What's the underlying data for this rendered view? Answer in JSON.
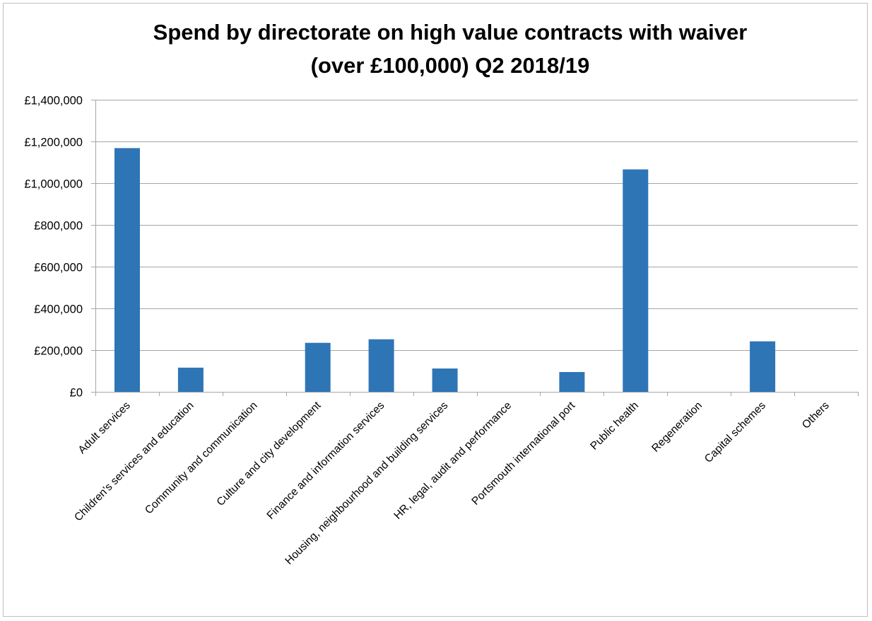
{
  "chart_data": {
    "type": "bar",
    "title_lines": [
      "Spend by directorate on high value contracts with waiver",
      "(over £100,000) Q2 2018/19"
    ],
    "xlabel": "",
    "ylabel": "",
    "categories": [
      "Adult services",
      "Children's services and education",
      "Community and communication",
      "Culture and city development",
      "Finance and information services",
      "Housing, neighbourhood and building services",
      "HR, legal, audit and performance",
      "Portsmouth international port",
      "Public health",
      "Regeneration",
      "Capital schemes",
      "Others"
    ],
    "values": [
      1168000,
      116000,
      0,
      235000,
      252000,
      112000,
      0,
      95000,
      1066000,
      0,
      242000,
      0
    ],
    "ylim": [
      0,
      1400000
    ],
    "ytick_values": [
      0,
      200000,
      400000,
      600000,
      800000,
      1000000,
      1200000,
      1400000
    ],
    "ytick_labels": [
      "£0",
      "£200,000",
      "£400,000",
      "£600,000",
      "£800,000",
      "£1,000,000",
      "£1,200,000",
      "£1,400,000"
    ],
    "grid": true,
    "legend": "none",
    "bar_color": "#2E75B6",
    "grid_color": "#A6A6A6"
  }
}
